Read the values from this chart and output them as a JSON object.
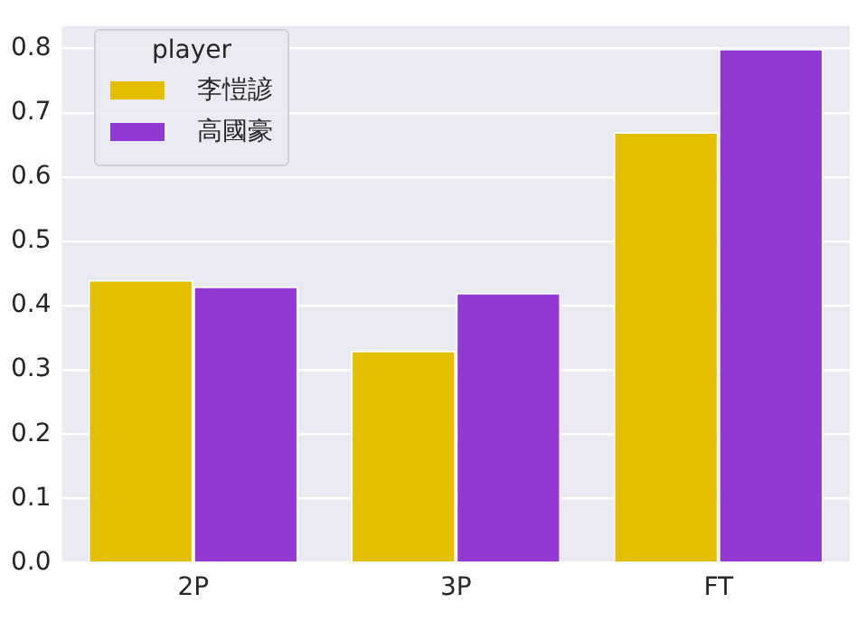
{
  "chart_data": {
    "type": "bar",
    "categories": [
      "2P",
      "3P",
      "FT"
    ],
    "legend_title": "player",
    "series": [
      {
        "name": "李愷諺",
        "color": "#e3bf00",
        "values": [
          0.44,
          0.33,
          0.67
        ]
      },
      {
        "name": "高國豪",
        "color": "#9239d4",
        "values": [
          0.43,
          0.42,
          0.8
        ]
      }
    ],
    "ylim": [
      0,
      0.835
    ],
    "yticks": [
      {
        "value": 0,
        "label": "0.0"
      },
      0.1,
      0.2,
      0.3,
      0.4,
      0.5,
      0.6,
      0.7,
      0.8
    ],
    "grid": "y",
    "legend": "top left"
  }
}
